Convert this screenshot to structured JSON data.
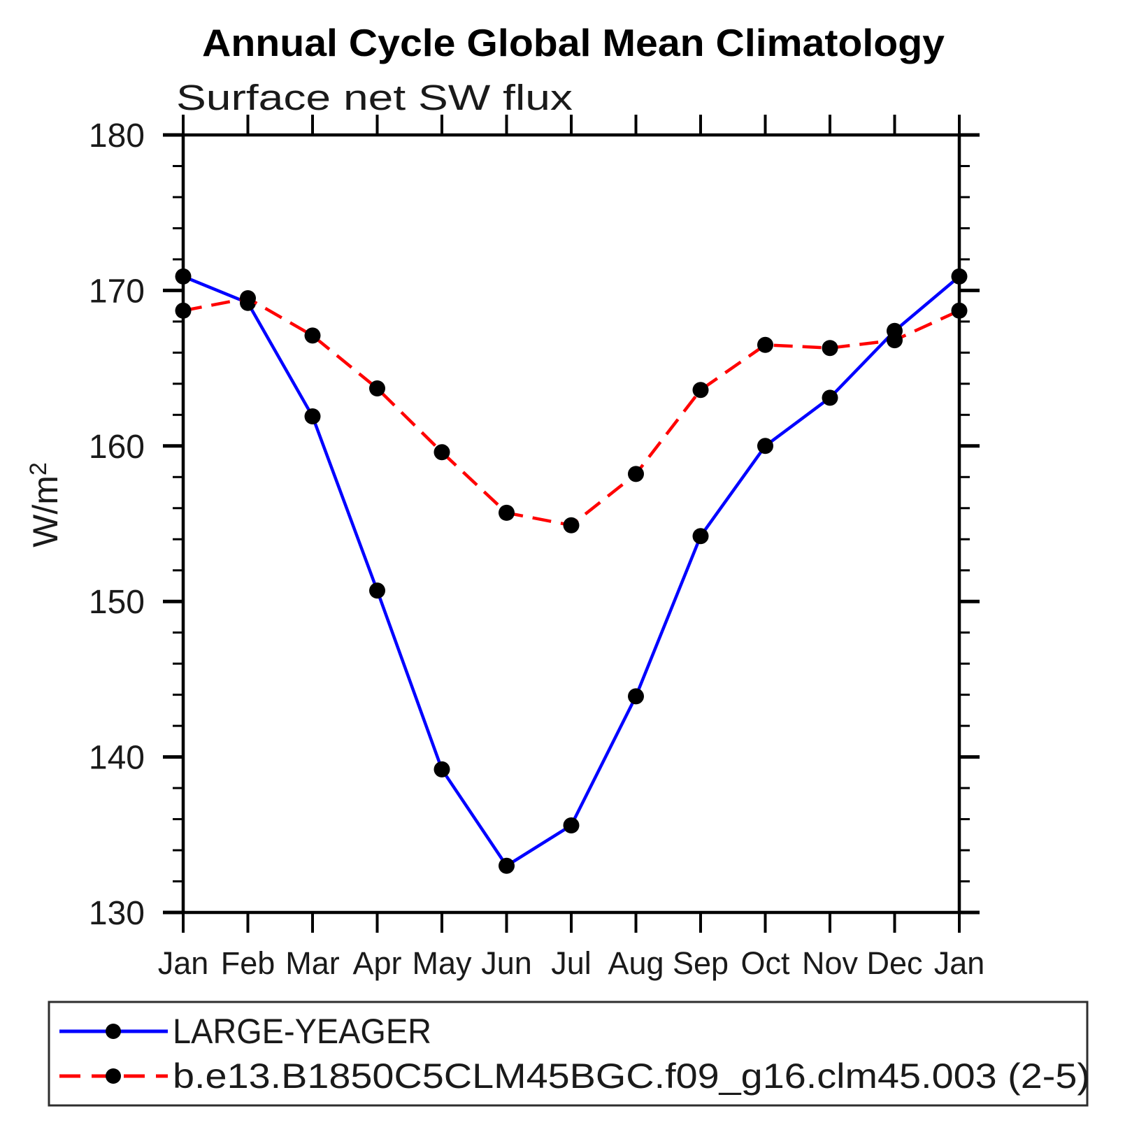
{
  "chart_data": {
    "type": "line",
    "title": "Annual Cycle Global Mean Climatology",
    "subtitle": "Surface net SW flux",
    "ylabel_base": "W/m",
    "ylabel_sup": "2",
    "categories": [
      "Jan",
      "Feb",
      "Mar",
      "Apr",
      "May",
      "Jun",
      "Jul",
      "Aug",
      "Sep",
      "Oct",
      "Nov",
      "Dec",
      "Jan"
    ],
    "ylim": [
      130,
      180
    ],
    "y_major_ticks": [
      130,
      140,
      150,
      160,
      170,
      180
    ],
    "y_tick_labels": [
      "130",
      "140",
      "150",
      "160",
      "170",
      "180"
    ],
    "y_minor_step": 2,
    "grid": false,
    "legend_position": "bottom-left-box",
    "series": [
      {
        "name": "LARGE-YEAGER",
        "color": "#0000ff",
        "line_style": "solid",
        "marker": "circle",
        "marker_color": "#000000",
        "values": [
          170.9,
          169.2,
          161.9,
          150.7,
          139.2,
          133.0,
          135.6,
          143.9,
          154.2,
          160.0,
          163.1,
          167.4,
          170.9
        ]
      },
      {
        "name": "b.e13.B1850C5CLM45BGC.f09_g16.clm45.003 (2-5)",
        "color": "#ff0000",
        "line_style": "dashed",
        "marker": "circle",
        "marker_color": "#000000",
        "values": [
          168.7,
          169.5,
          167.1,
          163.7,
          159.6,
          155.7,
          154.9,
          158.2,
          163.6,
          166.5,
          166.3,
          166.8,
          168.7
        ]
      }
    ]
  }
}
